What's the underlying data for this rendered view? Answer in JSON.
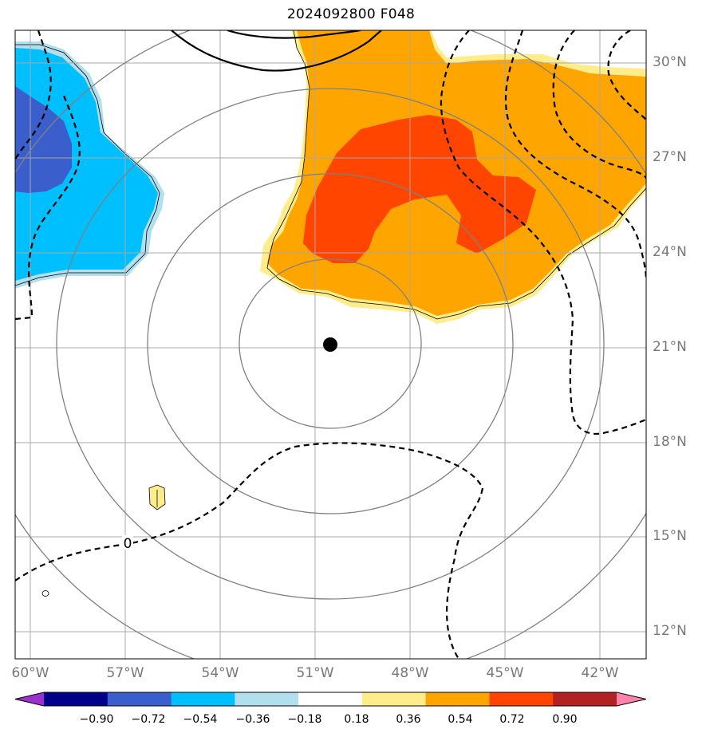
{
  "title": "2024092800 F048",
  "lat_labels": [
    "30°N",
    "27°N",
    "24°N",
    "21°N",
    "18°N",
    "15°N",
    "12°N"
  ],
  "lon_labels": [
    "60°W",
    "57°W",
    "54°W",
    "51°W",
    "48°W",
    "45°W",
    "42°W"
  ],
  "contour_label": "0",
  "colorbar": {
    "ticks": [
      "−0.90",
      "−0.72",
      "−0.54",
      "−0.36",
      "−0.18",
      "0.18",
      "0.36",
      "0.54",
      "0.72",
      "0.90"
    ],
    "colors": [
      "#9a32cd",
      "#00008b",
      "#3a5fcd",
      "#00bfff",
      "#b2dfee",
      "#ffffff",
      "#ffec8b",
      "#ffa500",
      "#ff4500",
      "#b22222",
      "#ff82ab"
    ]
  },
  "fill_colors": {
    "light_blue": "#b2dfee",
    "blue": "#00bfff",
    "dark_blue": "#3a5fcd",
    "yellow": "#ffec8b",
    "orange": "#ffa500",
    "red_orange": "#ff4500"
  },
  "center_marker": {
    "lat": 21,
    "lon": -50.5
  }
}
